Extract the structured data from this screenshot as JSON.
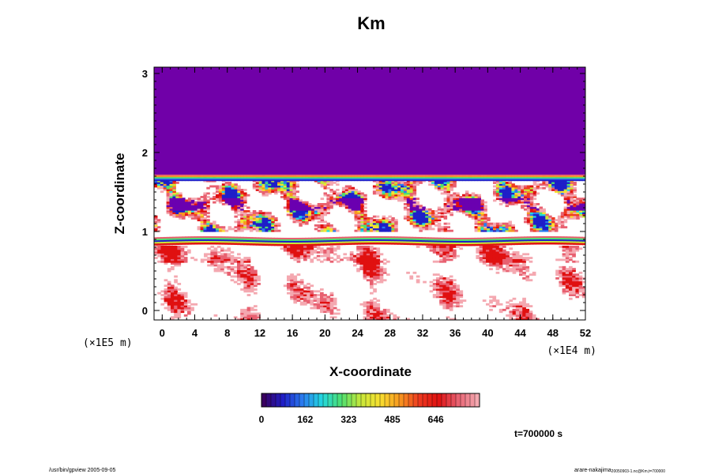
{
  "chart_data": {
    "type": "heatmap",
    "title": "Km",
    "xlabel": "X-coordinate",
    "ylabel": "Z-coordinate",
    "x_scale_note": "(×1E4 m)",
    "y_scale_note": "(×1E5 m)",
    "xlim": [
      -1,
      52
    ],
    "ylim": [
      -0.12,
      3.08
    ],
    "x_ticks": [
      "0",
      "4",
      "8",
      "12",
      "16",
      "20",
      "24",
      "28",
      "32",
      "36",
      "40",
      "44",
      "48",
      "52"
    ],
    "y_ticks": [
      "0",
      "1",
      "2",
      "3"
    ],
    "colorbar": {
      "tick_labels": [
        "0",
        "162",
        "323",
        "485",
        "646"
      ],
      "tick_values": [
        0,
        162,
        323,
        485,
        646
      ],
      "range": [
        0,
        808
      ],
      "colors": [
        "#3a0060",
        "#1f1fc8",
        "#2a7df0",
        "#22d8e0",
        "#4ee070",
        "#c8e83a",
        "#f8e030",
        "#f89820",
        "#ee3a20",
        "#e01010",
        "#e86070",
        "#f4a8b0"
      ]
    },
    "regions": [
      {
        "label": "upper uniform region",
        "z_range": [
          1.72,
          3.08
        ],
        "value": 0
      },
      {
        "label": "turbulent layer",
        "z_range": [
          1.0,
          1.72
        ]
      },
      {
        "label": "thin layer",
        "z_range": [
          0.82,
          0.92
        ]
      },
      {
        "label": "lower region",
        "z_range": [
          -0.12,
          0.82
        ]
      }
    ],
    "time_label": "t=700000 s"
  },
  "footer": {
    "left": "/usr/bin/gpview 2005-09-05",
    "right_main": "arare-nakajima",
    "right_sub": "20050903-1.nc@Km,t=700000"
  }
}
